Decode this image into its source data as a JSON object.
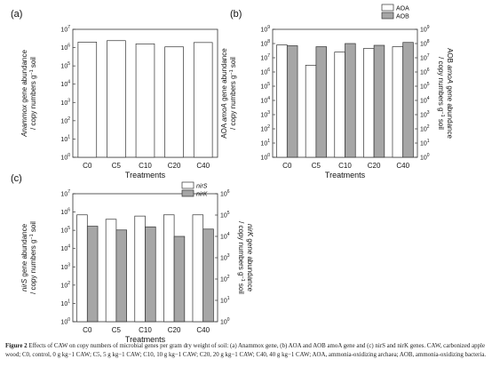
{
  "chart_data": [
    {
      "type": "bar",
      "panel_label": "(a)",
      "categories": [
        "C0",
        "C5",
        "C10",
        "C20",
        "C40"
      ],
      "xlabel": "Treatments",
      "ylabel_line1_italic": "Anammox",
      "ylabel_line1_rest": " gene abundance",
      "ylabel_line2": "/ copy numbers g",
      "ylabel_line2_sup": "−1",
      "ylabel_line2_end": " soil",
      "y_scale": "log",
      "ylim": [
        1,
        10000000
      ],
      "y_ticks": [
        "10",
        "10",
        "10",
        "10",
        "10",
        "10",
        "10",
        "10"
      ],
      "y_tick_exps": [
        "0",
        "1",
        "2",
        "3",
        "4",
        "5",
        "6",
        "7"
      ],
      "series": [
        {
          "values": [
            2000000,
            2400000,
            1600000,
            1100000,
            1900000
          ],
          "color": "#ffffff"
        }
      ]
    },
    {
      "type": "bar",
      "panel_label": "(b)",
      "categories": [
        "C0",
        "C5",
        "C10",
        "C20",
        "C40"
      ],
      "xlabel": "Treatments",
      "ylabel_left_line1_pre": "AOA ",
      "ylabel_left_line1_italic": "amoA",
      "ylabel_left_line1_rest": " gene abundance",
      "ylabel_left_line2": "/ copy numbers g",
      "ylabel_left_line2_sup": "−1",
      "ylabel_left_line2_end": " soil",
      "ylabel_right_line1_pre": "AOB ",
      "ylabel_right_line1_italic": "amoA",
      "ylabel_right_line1_rest": " gene abundance",
      "ylabel_right_line2": "/ copy numbers g",
      "ylabel_right_line2_sup": "−1",
      "ylabel_right_line2_end": " soil",
      "y_scale": "log",
      "ylim": [
        1,
        1000000000
      ],
      "y_ticks": [
        "10",
        "10",
        "10",
        "10",
        "10",
        "10",
        "10",
        "10",
        "10",
        "10"
      ],
      "y_tick_exps": [
        "0",
        "1",
        "2",
        "3",
        "4",
        "5",
        "6",
        "7",
        "8",
        "9"
      ],
      "legend_position": "top-right",
      "series": [
        {
          "name": "AOA",
          "values": [
            80000000,
            3000000,
            25000000,
            45000000,
            60000000
          ],
          "color": "#ffffff"
        },
        {
          "name": "AOB",
          "values": [
            70000000,
            60000000,
            100000000,
            75000000,
            120000000
          ],
          "color": "#a6a6a6"
        }
      ]
    },
    {
      "type": "bar",
      "panel_label": "(c)",
      "categories": [
        "C0",
        "C5",
        "C10",
        "C20",
        "C40"
      ],
      "xlabel": "Treatments",
      "ylabel_left_line1_italic": "nirS",
      "ylabel_left_line1_rest": " gene abundance",
      "ylabel_left_line2": "/ copy numbers g",
      "ylabel_left_line2_sup": "−1",
      "ylabel_left_line2_end": " soil",
      "ylabel_right_line1_italic": "nirK",
      "ylabel_right_line1_rest": " gene abundance",
      "ylabel_right_line2": "/ copy numbers g",
      "ylabel_right_line2_sup": "−1",
      "ylabel_right_line2_end": " soil",
      "y_scale": "log",
      "ylim_left": [
        1,
        10000000
      ],
      "ylim_right": [
        1,
        1000000
      ],
      "y_ticks_left": [
        "10",
        "10",
        "10",
        "10",
        "10",
        "10",
        "10",
        "10"
      ],
      "y_tick_exps_left": [
        "0",
        "1",
        "2",
        "3",
        "4",
        "5",
        "6",
        "7"
      ],
      "y_ticks_right": [
        "10",
        "10",
        "10",
        "10",
        "10",
        "10",
        "10"
      ],
      "y_tick_exps_right": [
        "0",
        "1",
        "2",
        "3",
        "4",
        "5",
        "6"
      ],
      "legend_position": "top-right",
      "series": [
        {
          "name": "nirS",
          "axis": "left",
          "values": [
            700000,
            400000,
            600000,
            700000,
            700000
          ],
          "color": "#ffffff"
        },
        {
          "name": "nirK",
          "axis": "right",
          "values": [
            30000,
            20000,
            28000,
            10000,
            22000
          ],
          "color": "#a6a6a6"
        }
      ]
    }
  ],
  "caption": {
    "label": "Figure 2",
    "text": "Effects of CAW on copy numbers of microbial genes per gram dry weight of soil: (a) Anammox gene, (b) AOA and AOB amoA gene and (c) nirS and nirK genes. CAW, carbonized apple wood; C0, control, 0 g kg−1 CAW; C5, 5 g kg−1 CAW; C10, 10 g kg−1 CAW; C20, 20 g kg−1 CAW; C40, 40 g kg−1 CAW; AOA, ammonia-oxidizing archaea; AOB, ammonia-oxidizing bacteria."
  }
}
